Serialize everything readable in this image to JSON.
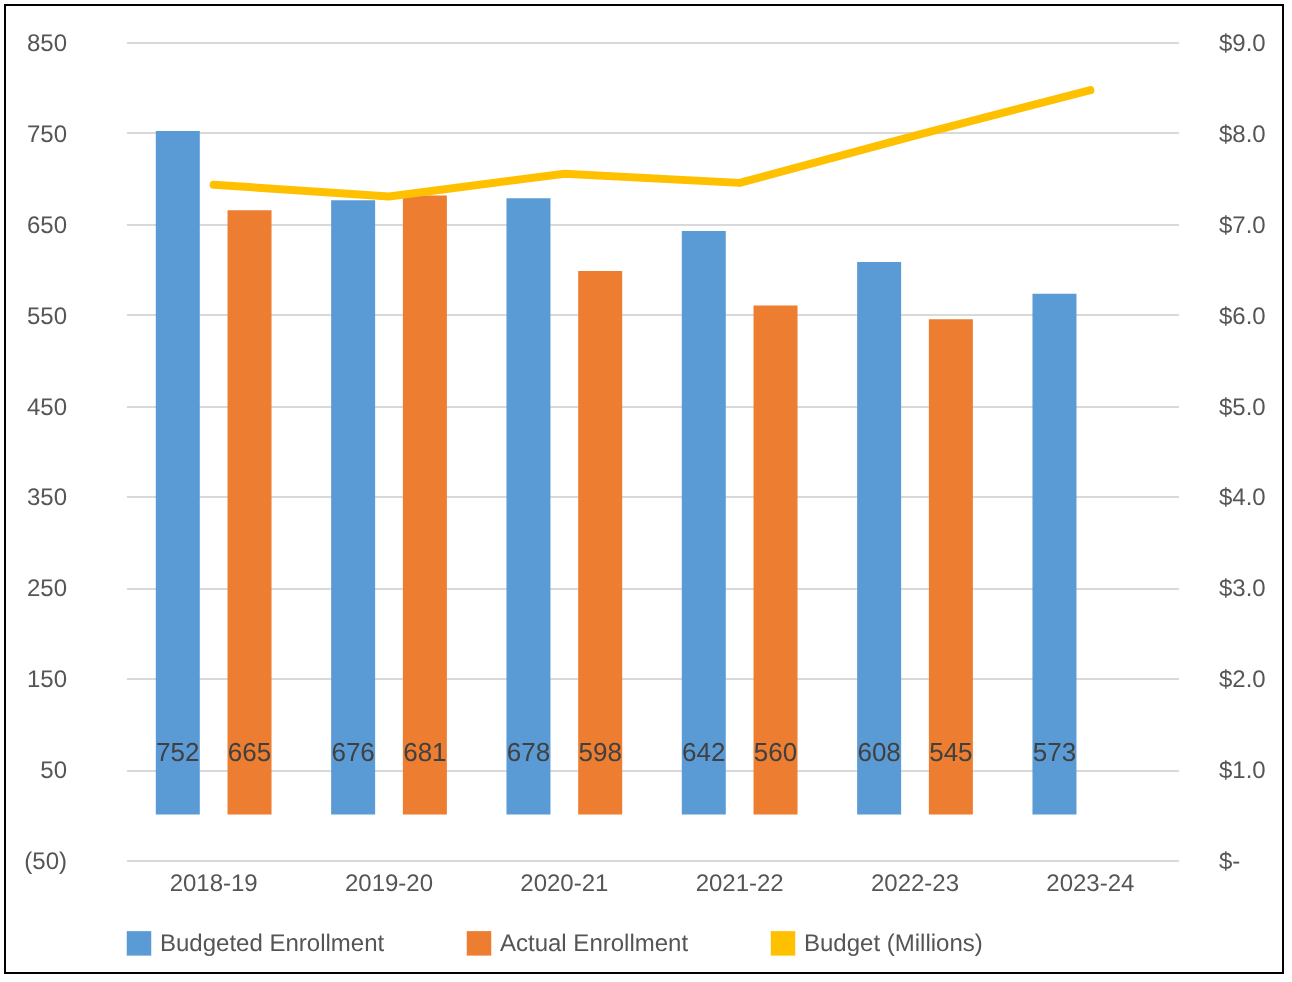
{
  "chart_data": {
    "type": "bar",
    "categories": [
      "2018-19",
      "2019-20",
      "2020-21",
      "2021-22",
      "2022-23",
      "2023-24"
    ],
    "series": [
      {
        "name": "Budgeted Enrollment",
        "color": "#5b9bd5",
        "values": [
          752,
          676,
          678,
          642,
          608,
          573
        ],
        "value_labels": [
          "752",
          "676",
          "678",
          "642",
          "608",
          "573"
        ]
      },
      {
        "name": "Actual Enrollment",
        "color": "#ed7d31",
        "values": [
          665,
          681,
          598,
          560,
          545,
          null
        ],
        "value_labels": [
          "665",
          "681",
          "598",
          "560",
          "545",
          null
        ]
      },
      {
        "name": "Budget (Millions)",
        "type": "line",
        "axis": "y2",
        "color": "#ffc000",
        "values": [
          7.43,
          7.3,
          7.55,
          7.45,
          7.97,
          8.47
        ]
      }
    ],
    "ylim": [
      -50,
      850
    ],
    "yticks": [
      {
        "value": -50,
        "label": "(50)"
      },
      50,
      150,
      250,
      350,
      450,
      550,
      650,
      750,
      850
    ],
    "y2lim": [
      0,
      9
    ],
    "y2ticks": [
      {
        "value": 0,
        "label": "$-"
      },
      {
        "value": 1,
        "label": "$1.0"
      },
      {
        "value": 2,
        "label": "$2.0"
      },
      {
        "value": 3,
        "label": "$3.0"
      },
      {
        "value": 4,
        "label": "$4.0"
      },
      {
        "value": 5,
        "label": "$5.0"
      },
      {
        "value": 6,
        "label": "$6.0"
      },
      {
        "value": 7,
        "label": "$7.0"
      },
      {
        "value": 8,
        "label": "$8.0"
      },
      {
        "value": 9,
        "label": "$9.0"
      }
    ],
    "grid": "y",
    "legend": "bottom"
  }
}
